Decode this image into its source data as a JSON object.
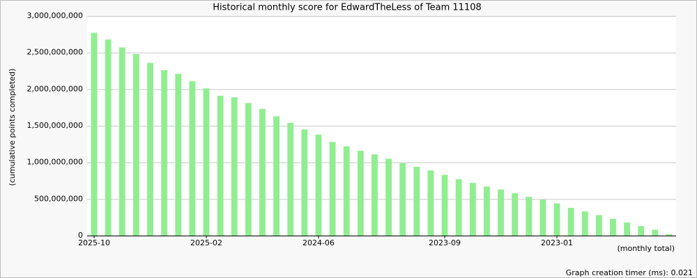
{
  "chart_data": {
    "type": "bar",
    "title": "Historical monthly score for EdwardTheLess of Team 11108",
    "y_label": "(cumulative points completed)",
    "x_label": "(monthly total)",
    "footer": "Graph creation timer (ms): 0.021",
    "color": "#90ee90",
    "grid": true,
    "categories": [
      "2025-10",
      null,
      null,
      null,
      null,
      null,
      null,
      null,
      "2025-02",
      null,
      null,
      null,
      null,
      null,
      null,
      null,
      "2024-06",
      null,
      null,
      null,
      null,
      null,
      null,
      null,
      null,
      "2023-09",
      null,
      null,
      null,
      null,
      null,
      null,
      null,
      "2023-01",
      null,
      null,
      null,
      null,
      null,
      null,
      null,
      null
    ],
    "values": [
      2770000000,
      2680000000,
      2570000000,
      2480000000,
      2360000000,
      2260000000,
      2210000000,
      2110000000,
      2010000000,
      1910000000,
      1890000000,
      1810000000,
      1730000000,
      1630000000,
      1540000000,
      1450000000,
      1380000000,
      1280000000,
      1220000000,
      1160000000,
      1110000000,
      1050000000,
      990000000,
      940000000,
      890000000,
      830000000,
      770000000,
      720000000,
      670000000,
      630000000,
      580000000,
      530000000,
      490000000,
      440000000,
      380000000,
      330000000,
      280000000,
      230000000,
      180000000,
      130000000,
      80000000,
      20000000
    ],
    "ylim": [
      0,
      3000000000
    ],
    "yticks": [
      0,
      {
        "value": 500000000,
        "label": "500,000,000"
      },
      {
        "value": 1000000000,
        "label": "1,000,000,000"
      },
      {
        "value": 1500000000,
        "label": "1,500,000,000"
      },
      {
        "value": 2000000000,
        "label": "2,000,000,000"
      },
      {
        "value": 2500000000,
        "label": "2,500,000,000"
      },
      {
        "value": 3000000000,
        "label": "3,000,000,000"
      }
    ]
  }
}
